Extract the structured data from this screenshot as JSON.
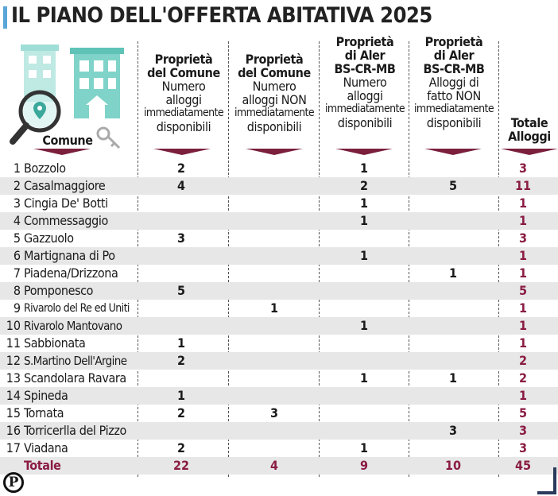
{
  "title": "IL PIANO DELL'OFFERTA ABITATIVA 2025",
  "columns": {
    "comune": "Comune",
    "c1": {
      "l1": "Proprietà",
      "l2": "del Comune",
      "l3": "Numero",
      "l4": "alloggi",
      "l5": "immediatamente",
      "l6": "disponibili"
    },
    "c2": {
      "l1": "Proprietà",
      "l2": "del Comune",
      "l3": "Numero",
      "l4": "alloggi NON",
      "l5": "immediatamente",
      "l6": "disponibili"
    },
    "c3": {
      "l1": "Proprietà",
      "l2": "di Aler",
      "l3": "BS-CR-MB",
      "l4": "Numero",
      "l5": "alloggi",
      "l6": "immediatamente",
      "l7": "disponibili"
    },
    "c4": {
      "l1": "Proprietà",
      "l2": "di Aler",
      "l3": "BS-CR-MB",
      "l4": "Alloggi di",
      "l5": "fatto NON",
      "l6": "immediatamente",
      "l7": "disponibili"
    },
    "c5": {
      "l1": "Totale",
      "l2": "Alloggi"
    }
  },
  "rows": [
    {
      "n": "1",
      "name": "Bozzolo",
      "c1": "2",
      "c2": "",
      "c3": "1",
      "c4": "",
      "tot": "3"
    },
    {
      "n": "2",
      "name": "Casalmaggiore",
      "c1": "4",
      "c2": "",
      "c3": "2",
      "c4": "5",
      "tot": "11"
    },
    {
      "n": "3",
      "name": "Cingia De' Botti",
      "c1": "",
      "c2": "",
      "c3": "1",
      "c4": "",
      "tot": "1"
    },
    {
      "n": "4",
      "name": "Commessaggio",
      "c1": "",
      "c2": "",
      "c3": "1",
      "c4": "",
      "tot": "1"
    },
    {
      "n": "5",
      "name": "Gazzuolo",
      "c1": "3",
      "c2": "",
      "c3": "",
      "c4": "",
      "tot": "3"
    },
    {
      "n": "6",
      "name": "Martignana di Po",
      "c1": "",
      "c2": "",
      "c3": "1",
      "c4": "",
      "tot": "1"
    },
    {
      "n": "7",
      "name": "Piadena/Drizzona",
      "c1": "",
      "c2": "",
      "c3": "",
      "c4": "1",
      "tot": "1"
    },
    {
      "n": "8",
      "name": "Pomponesco",
      "c1": "5",
      "c2": "",
      "c3": "",
      "c4": "",
      "tot": "5"
    },
    {
      "n": "9",
      "name": "Rivarolo del Re ed Uniti",
      "c1": "",
      "c2": "1",
      "c3": "",
      "c4": "",
      "tot": "1"
    },
    {
      "n": "10",
      "name": "Rivarolo Mantovano",
      "c1": "",
      "c2": "",
      "c3": "1",
      "c4": "",
      "tot": "1"
    },
    {
      "n": "11",
      "name": "Sabbionata",
      "c1": "1",
      "c2": "",
      "c3": "",
      "c4": "",
      "tot": "1"
    },
    {
      "n": "12",
      "name": "S.Martino Dell'Argine",
      "c1": "2",
      "c2": "",
      "c3": "",
      "c4": "",
      "tot": "2"
    },
    {
      "n": "13",
      "name": "Scandolara Ravara",
      "c1": "",
      "c2": "",
      "c3": "1",
      "c4": "1",
      "tot": "2"
    },
    {
      "n": "14",
      "name": "Spineda",
      "c1": "1",
      "c2": "",
      "c3": "",
      "c4": "",
      "tot": "1"
    },
    {
      "n": "15",
      "name": "Tornata",
      "c1": "2",
      "c2": "3",
      "c3": "",
      "c4": "",
      "tot": "5"
    },
    {
      "n": "16",
      "name": "Torricerlla del Pizzo",
      "c1": "",
      "c2": "",
      "c3": "",
      "c4": "3",
      "tot": "3"
    },
    {
      "n": "17",
      "name": "Viadana",
      "c1": "2",
      "c2": "",
      "c3": "1",
      "c4": "",
      "tot": "3"
    }
  ],
  "totals": {
    "label": "Totale",
    "c1": "22",
    "c2": "4",
    "c3": "9",
    "c4": "10",
    "tot": "45"
  },
  "logo_letter": "P",
  "colors": {
    "accent": "#8a1c43",
    "title_bar": "#5aa6d8",
    "building": "#7fd3c8",
    "row_shade": "#e7e7e7"
  }
}
